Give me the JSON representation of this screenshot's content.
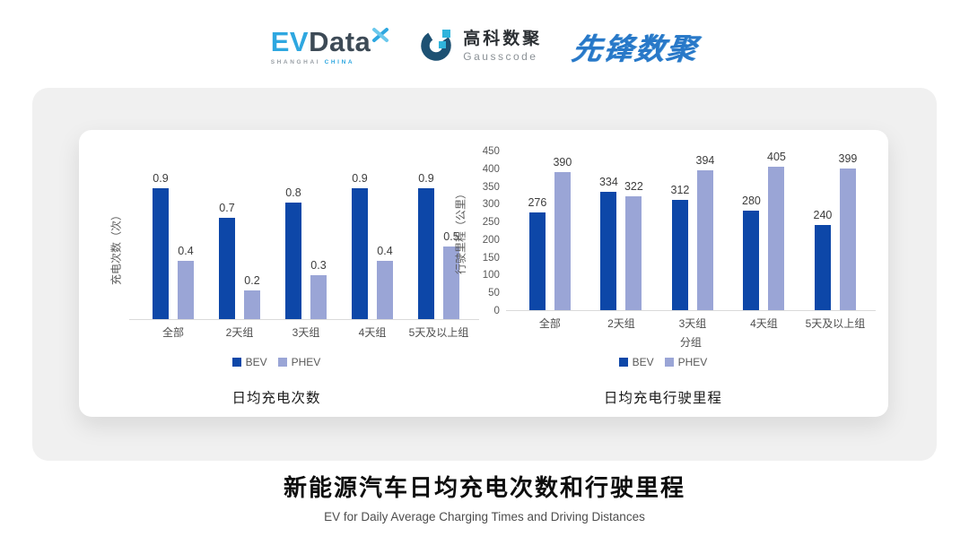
{
  "header": {
    "evdata": {
      "ev": "EV",
      "data": "Data",
      "sub_left": "SHANGHAI",
      "sub_right": "CHINA",
      "colors": {
        "blue": "#2EA7E0",
        "dark": "#3D4A56"
      }
    },
    "gausscode": {
      "cn": "高科数聚",
      "en": "Gausscode",
      "colors": {
        "navy": "#1D5173",
        "cyan": "#30B4DC"
      }
    },
    "xianfeng": {
      "text": "先锋数聚",
      "color": "#2878C8"
    }
  },
  "chart_data": [
    {
      "type": "bar",
      "title": "日均充电次数",
      "categories": [
        "全部",
        "2天组",
        "3天组",
        "4天组",
        "5天及以上组"
      ],
      "series": [
        {
          "name": "BEV",
          "values": [
            0.9,
            0.7,
            0.8,
            0.9,
            0.9
          ],
          "color": "#0D47A8"
        },
        {
          "name": "PHEV",
          "values": [
            0.4,
            0.2,
            0.3,
            0.4,
            0.5
          ],
          "color": "#9AA5D6"
        }
      ],
      "ylabel": "充电次数（次）",
      "xlabel": "",
      "ylim": [
        0,
        1.0
      ],
      "yticks": [],
      "grid": false,
      "legend_position": "bottom"
    },
    {
      "type": "bar",
      "title": "日均充电行驶里程",
      "categories": [
        "全部",
        "2天组",
        "3天组",
        "4天组",
        "5天及以上组"
      ],
      "series": [
        {
          "name": "BEV",
          "values": [
            276,
            334,
            312,
            280,
            240
          ],
          "color": "#0D47A8"
        },
        {
          "name": "PHEV",
          "values": [
            390,
            322,
            394,
            405,
            399
          ],
          "color": "#9AA5D6"
        }
      ],
      "ylabel": "行驶里程（公里）",
      "xlabel": "分组",
      "ylim": [
        0,
        450
      ],
      "yticks": [
        450,
        400,
        350,
        300,
        250,
        200,
        150,
        100,
        50,
        0
      ],
      "grid": false,
      "legend_position": "bottom"
    }
  ],
  "footer": {
    "title": "新能源汽车日均充电次数和行驶里程",
    "subtitle": "EV for Daily Average Charging Times and Driving Distances"
  }
}
